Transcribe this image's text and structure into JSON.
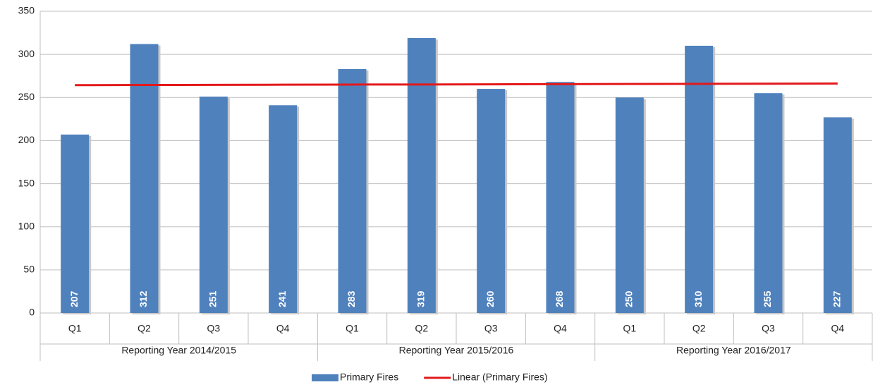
{
  "chart_data": {
    "type": "bar",
    "groups": [
      {
        "name": "Reporting Year 2014/2015",
        "categories": [
          "Q1",
          "Q2",
          "Q3",
          "Q4"
        ]
      },
      {
        "name": "Reporting Year 2015/2016",
        "categories": [
          "Q1",
          "Q2",
          "Q3",
          "Q4"
        ]
      },
      {
        "name": "Reporting Year 2016/2017",
        "categories": [
          "Q1",
          "Q2",
          "Q3",
          "Q4"
        ]
      }
    ],
    "series": [
      {
        "name": "Primary Fires",
        "type": "bar",
        "color": "#4f81bd",
        "values": [
          207,
          312,
          251,
          241,
          283,
          319,
          260,
          268,
          250,
          310,
          255,
          227
        ]
      },
      {
        "name": "Linear (Primary Fires)",
        "type": "line",
        "color": "#e3191b",
        "values": [
          264.3,
          264.5,
          264.6,
          264.8,
          265.0,
          265.1,
          265.3,
          265.5,
          265.7,
          265.8,
          266.0,
          266.2
        ]
      }
    ],
    "ylim": [
      0,
      350
    ],
    "yticks": [
      0,
      50,
      100,
      150,
      200,
      250,
      300,
      350
    ],
    "grid": true,
    "data_labels": true,
    "legend": "bottom"
  }
}
